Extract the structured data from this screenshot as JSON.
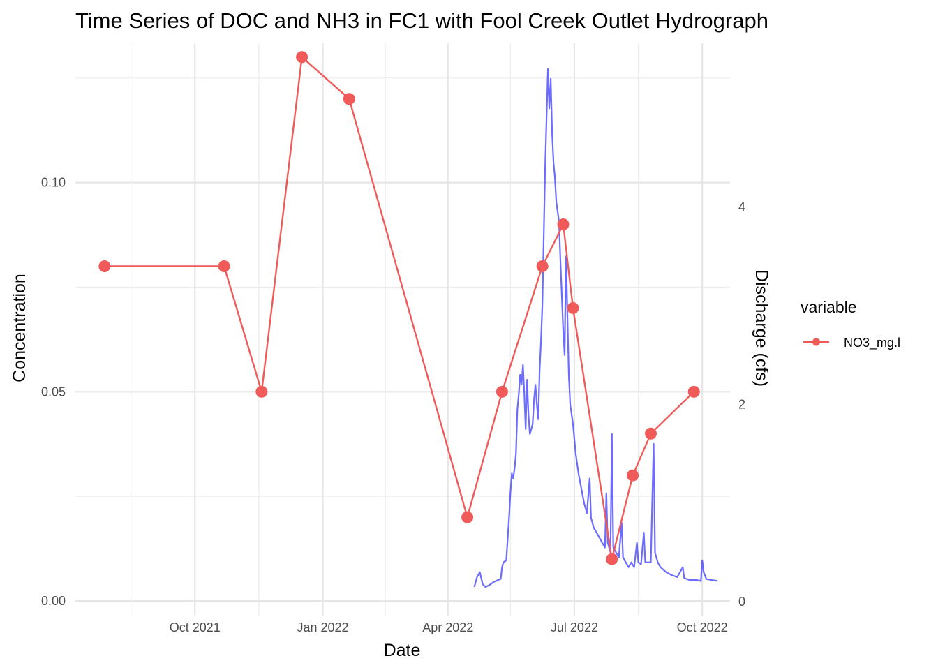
{
  "chart_data": {
    "type": "line",
    "title": "Time Series of DOC and NH3 in FC1 with Fool Creek Outlet Hydrograph",
    "xlabel": "Date",
    "ylabel": "Concentration",
    "y2label": "Discharge (cfs)",
    "xlim": [
      "2021-07-07",
      "2022-10-21"
    ],
    "ylim": [
      -0.0035,
      0.1333
    ],
    "y2lim": [
      -0.14,
      5.66
    ],
    "x_ticks": [
      {
        "date": "2021-10-01",
        "label": "Oct 2021"
      },
      {
        "date": "2022-01-01",
        "label": "Jan 2022"
      },
      {
        "date": "2022-04-01",
        "label": "Apr 2022"
      },
      {
        "date": "2022-07-01",
        "label": "Jul 2022"
      },
      {
        "date": "2022-10-01",
        "label": "Oct 2022"
      }
    ],
    "x_minor_ticks": [
      "2021-08-16",
      "2021-11-16",
      "2022-02-15",
      "2022-05-16",
      "2022-08-16"
    ],
    "y_ticks": [
      {
        "value": 0.0,
        "label": "0.00"
      },
      {
        "value": 0.05,
        "label": "0.05"
      },
      {
        "value": 0.1,
        "label": "0.10"
      }
    ],
    "y_minor_ticks": [
      0.025,
      0.075,
      0.125
    ],
    "y2_ticks": [
      {
        "value": 0,
        "label": "0"
      },
      {
        "value": 2,
        "label": "2"
      },
      {
        "value": 4,
        "label": "4"
      }
    ],
    "legend": {
      "title": "variable",
      "position": "right",
      "entries": [
        "NO3_mg.l"
      ]
    },
    "grid": true,
    "series": [
      {
        "name": "NO3_mg.l",
        "axis": "left",
        "color": "#f05a59",
        "marker": "circle",
        "points": [
          {
            "x": "2021-07-28",
            "y": 0.08
          },
          {
            "x": "2021-10-22",
            "y": 0.08
          },
          {
            "x": "2021-11-18",
            "y": 0.05
          },
          {
            "x": "2021-12-17",
            "y": 0.13
          },
          {
            "x": "2022-01-20",
            "y": 0.12
          },
          {
            "x": "2022-04-15",
            "y": 0.02
          },
          {
            "x": "2022-05-10",
            "y": 0.05
          },
          {
            "x": "2022-06-08",
            "y": 0.08
          },
          {
            "x": "2022-06-23",
            "y": 0.09
          },
          {
            "x": "2022-06-30",
            "y": 0.07
          },
          {
            "x": "2022-07-28",
            "y": 0.01
          },
          {
            "x": "2022-08-12",
            "y": 0.03
          },
          {
            "x": "2022-08-25",
            "y": 0.04
          },
          {
            "x": "2022-09-25",
            "y": 0.05
          }
        ]
      },
      {
        "axis": "right",
        "color": "#3333ff",
        "points": [
          {
            "x": "2022-04-20",
            "y": 0.15
          },
          {
            "x": "2022-04-22",
            "y": 0.25
          },
          {
            "x": "2022-04-24",
            "y": 0.3
          },
          {
            "x": "2022-04-26",
            "y": 0.18
          },
          {
            "x": "2022-04-28",
            "y": 0.15
          },
          {
            "x": "2022-05-01",
            "y": 0.17
          },
          {
            "x": "2022-05-04",
            "y": 0.2
          },
          {
            "x": "2022-05-07",
            "y": 0.22
          },
          {
            "x": "2022-05-09",
            "y": 0.23
          },
          {
            "x": "2022-05-10",
            "y": 0.35
          },
          {
            "x": "2022-05-11",
            "y": 0.4
          },
          {
            "x": "2022-05-13",
            "y": 0.42
          },
          {
            "x": "2022-05-15",
            "y": 0.85
          },
          {
            "x": "2022-05-16",
            "y": 1.1
          },
          {
            "x": "2022-05-17",
            "y": 1.3
          },
          {
            "x": "2022-05-18",
            "y": 1.25
          },
          {
            "x": "2022-05-19",
            "y": 1.35
          },
          {
            "x": "2022-05-20",
            "y": 1.5
          },
          {
            "x": "2022-05-21",
            "y": 1.95
          },
          {
            "x": "2022-05-22",
            "y": 2.1
          },
          {
            "x": "2022-05-23",
            "y": 2.3
          },
          {
            "x": "2022-05-24",
            "y": 2.2
          },
          {
            "x": "2022-05-25",
            "y": 2.4
          },
          {
            "x": "2022-05-26",
            "y": 2.1
          },
          {
            "x": "2022-05-27",
            "y": 1.75
          },
          {
            "x": "2022-05-28",
            "y": 2.25
          },
          {
            "x": "2022-05-29",
            "y": 1.9
          },
          {
            "x": "2022-05-30",
            "y": 1.7
          },
          {
            "x": "2022-06-01",
            "y": 1.8
          },
          {
            "x": "2022-06-02",
            "y": 2.05
          },
          {
            "x": "2022-06-03",
            "y": 2.2
          },
          {
            "x": "2022-06-04",
            "y": 2.0
          },
          {
            "x": "2022-06-05",
            "y": 1.85
          },
          {
            "x": "2022-06-06",
            "y": 2.35
          },
          {
            "x": "2022-06-07",
            "y": 2.65
          },
          {
            "x": "2022-06-08",
            "y": 3.0
          },
          {
            "x": "2022-06-09",
            "y": 3.7
          },
          {
            "x": "2022-06-10",
            "y": 4.4
          },
          {
            "x": "2022-06-11",
            "y": 4.9
          },
          {
            "x": "2022-06-12",
            "y": 5.4
          },
          {
            "x": "2022-06-13",
            "y": 5.0
          },
          {
            "x": "2022-06-14",
            "y": 5.3
          },
          {
            "x": "2022-06-15",
            "y": 4.75
          },
          {
            "x": "2022-06-16",
            "y": 4.45
          },
          {
            "x": "2022-06-17",
            "y": 4.3
          },
          {
            "x": "2022-06-18",
            "y": 4.05
          },
          {
            "x": "2022-06-19",
            "y": 3.95
          },
          {
            "x": "2022-06-20",
            "y": 3.85
          },
          {
            "x": "2022-06-21",
            "y": 3.45
          },
          {
            "x": "2022-06-22",
            "y": 3.1
          },
          {
            "x": "2022-06-23",
            "y": 2.75
          },
          {
            "x": "2022-06-24",
            "y": 2.5
          },
          {
            "x": "2022-06-25",
            "y": 3.5
          },
          {
            "x": "2022-06-26",
            "y": 2.9
          },
          {
            "x": "2022-06-27",
            "y": 2.3
          },
          {
            "x": "2022-06-28",
            "y": 2.0
          },
          {
            "x": "2022-06-30",
            "y": 1.8
          },
          {
            "x": "2022-07-02",
            "y": 1.5
          },
          {
            "x": "2022-07-04",
            "y": 1.3
          },
          {
            "x": "2022-07-06",
            "y": 1.15
          },
          {
            "x": "2022-07-08",
            "y": 1.0
          },
          {
            "x": "2022-07-10",
            "y": 0.9
          },
          {
            "x": "2022-07-12",
            "y": 1.25
          },
          {
            "x": "2022-07-13",
            "y": 0.85
          },
          {
            "x": "2022-07-15",
            "y": 0.75
          },
          {
            "x": "2022-07-17",
            "y": 0.7
          },
          {
            "x": "2022-07-19",
            "y": 0.65
          },
          {
            "x": "2022-07-21",
            "y": 0.6
          },
          {
            "x": "2022-07-23",
            "y": 0.55
          },
          {
            "x": "2022-07-24",
            "y": 1.1
          },
          {
            "x": "2022-07-25",
            "y": 0.6
          },
          {
            "x": "2022-07-26",
            "y": 0.55
          },
          {
            "x": "2022-07-27",
            "y": 0.5
          },
          {
            "x": "2022-07-28",
            "y": 1.7
          },
          {
            "x": "2022-07-29",
            "y": 0.55
          },
          {
            "x": "2022-07-31",
            "y": 0.5
          },
          {
            "x": "2022-08-02",
            "y": 0.45
          },
          {
            "x": "2022-08-04",
            "y": 0.8
          },
          {
            "x": "2022-08-05",
            "y": 0.45
          },
          {
            "x": "2022-08-07",
            "y": 0.4
          },
          {
            "x": "2022-08-09",
            "y": 0.35
          },
          {
            "x": "2022-08-11",
            "y": 0.4
          },
          {
            "x": "2022-08-13",
            "y": 0.35
          },
          {
            "x": "2022-08-15",
            "y": 0.6
          },
          {
            "x": "2022-08-16",
            "y": 0.4
          },
          {
            "x": "2022-08-18",
            "y": 0.38
          },
          {
            "x": "2022-08-20",
            "y": 0.7
          },
          {
            "x": "2022-08-21",
            "y": 0.4
          },
          {
            "x": "2022-08-23",
            "y": 0.4
          },
          {
            "x": "2022-08-25",
            "y": 0.4
          },
          {
            "x": "2022-08-27",
            "y": 1.6
          },
          {
            "x": "2022-08-28",
            "y": 0.5
          },
          {
            "x": "2022-08-30",
            "y": 0.4
          },
          {
            "x": "2022-09-01",
            "y": 0.35
          },
          {
            "x": "2022-09-05",
            "y": 0.3
          },
          {
            "x": "2022-09-09",
            "y": 0.27
          },
          {
            "x": "2022-09-13",
            "y": 0.25
          },
          {
            "x": "2022-09-17",
            "y": 0.35
          },
          {
            "x": "2022-09-18",
            "y": 0.24
          },
          {
            "x": "2022-09-22",
            "y": 0.22
          },
          {
            "x": "2022-09-27",
            "y": 0.22
          },
          {
            "x": "2022-09-30",
            "y": 0.21
          },
          {
            "x": "2022-10-01",
            "y": 0.42
          },
          {
            "x": "2022-10-02",
            "y": 0.3
          },
          {
            "x": "2022-10-04",
            "y": 0.23
          },
          {
            "x": "2022-10-08",
            "y": 0.22
          },
          {
            "x": "2022-10-12",
            "y": 0.21
          }
        ]
      }
    ]
  }
}
